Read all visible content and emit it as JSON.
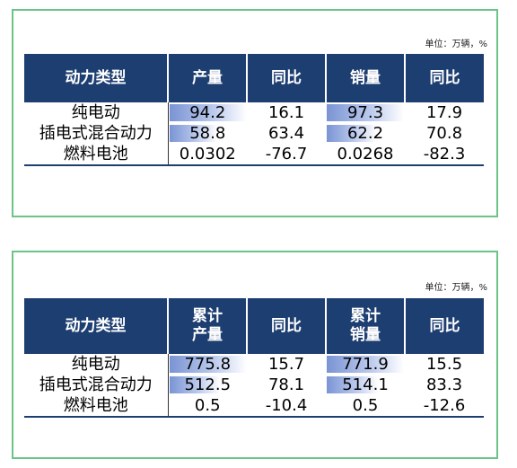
{
  "colors": {
    "header_bg": "#1d3e71",
    "panel_border": "#6cc487",
    "bar": "#7a94d4"
  },
  "tables": [
    {
      "unit": "单位：万辆，%",
      "headers": [
        "动力类型",
        "产量",
        "同比",
        "销量",
        "同比"
      ],
      "rows": [
        {
          "type": "纯电动",
          "production": "94.2",
          "production_yoy": "16.1",
          "sales": "97.3",
          "sales_yoy": "17.9",
          "production_bar": 1.0,
          "sales_bar": 1.0
        },
        {
          "type": "插电式混合动力",
          "production": "58.8",
          "production_yoy": "63.4",
          "sales": "62.2",
          "sales_yoy": "70.8",
          "production_bar": 0.624,
          "sales_bar": 0.639
        },
        {
          "type": "燃料电池",
          "production": "0.0302",
          "production_yoy": "-76.7",
          "sales": "0.0268",
          "sales_yoy": "-82.3",
          "production_bar": 0.0,
          "sales_bar": 0.0
        }
      ]
    },
    {
      "unit": "单位：万辆，%",
      "headers": [
        "动力类型",
        "累计\n产量",
        "同比",
        "累计\n销量",
        "同比"
      ],
      "rows": [
        {
          "type": "纯电动",
          "production": "775.8",
          "production_yoy": "15.7",
          "sales": "771.9",
          "sales_yoy": "15.5",
          "production_bar": 1.0,
          "sales_bar": 1.0
        },
        {
          "type": "插电式混合动力",
          "production": "512.5",
          "production_yoy": "78.1",
          "sales": "514.1",
          "sales_yoy": "83.3",
          "production_bar": 0.661,
          "sales_bar": 0.666
        },
        {
          "type": "燃料电池",
          "production": "0.5",
          "production_yoy": "-10.4",
          "sales": "0.5",
          "sales_yoy": "-12.6",
          "production_bar": 0.0,
          "sales_bar": 0.0
        }
      ]
    }
  ]
}
